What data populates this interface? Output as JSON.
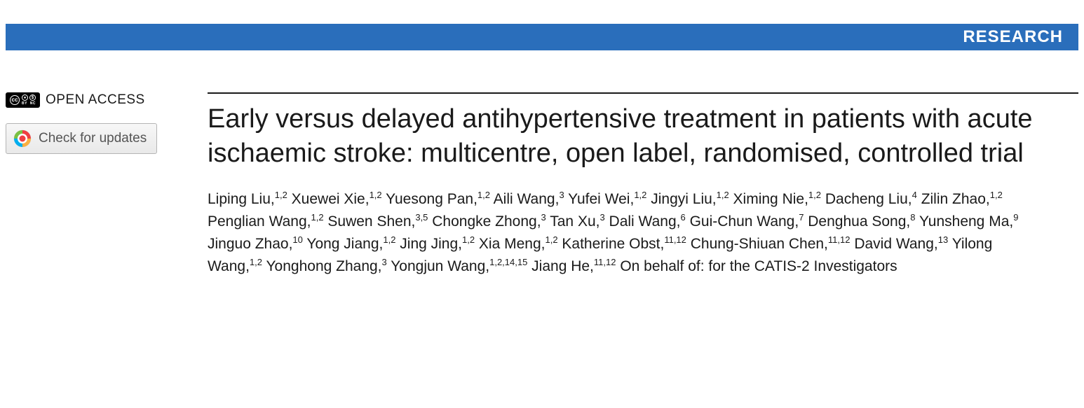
{
  "banner": {
    "label": "RESEARCH",
    "background": "#2a6ebb",
    "text_color": "#ffffff"
  },
  "sidebar": {
    "open_access_label": "OPEN ACCESS",
    "cc_badge": {
      "main": "cc",
      "icons": [
        "BY",
        "NC"
      ]
    },
    "updates_button_label": "Check for updates"
  },
  "article": {
    "title": "Early versus delayed antihypertensive treatment in patients with acute ischaemic stroke: multicentre, open label, randomised, controlled trial",
    "authors": [
      {
        "name": "Liping Liu",
        "aff": "1,2"
      },
      {
        "name": "Xuewei Xie",
        "aff": "1,2"
      },
      {
        "name": "Yuesong Pan",
        "aff": "1,2"
      },
      {
        "name": "Aili Wang",
        "aff": "3"
      },
      {
        "name": "Yufei Wei",
        "aff": "1,2"
      },
      {
        "name": "Jingyi Liu",
        "aff": "1,2"
      },
      {
        "name": "Ximing Nie",
        "aff": "1,2"
      },
      {
        "name": "Dacheng Liu",
        "aff": "4"
      },
      {
        "name": "Zilin Zhao",
        "aff": "1,2"
      },
      {
        "name": "Penglian Wang",
        "aff": "1,2"
      },
      {
        "name": "Suwen Shen",
        "aff": "3,5"
      },
      {
        "name": "Chongke Zhong",
        "aff": "3"
      },
      {
        "name": "Tan Xu",
        "aff": "3"
      },
      {
        "name": "Dali Wang",
        "aff": "6"
      },
      {
        "name": "Gui-Chun Wang",
        "aff": "7"
      },
      {
        "name": "Denghua Song",
        "aff": "8"
      },
      {
        "name": "Yunsheng Ma",
        "aff": "9"
      },
      {
        "name": "Jinguo Zhao",
        "aff": "10"
      },
      {
        "name": "Yong Jiang",
        "aff": "1,2"
      },
      {
        "name": "Jing Jing",
        "aff": "1,2"
      },
      {
        "name": "Xia Meng",
        "aff": "1,2"
      },
      {
        "name": "Katherine Obst",
        "aff": "11,12"
      },
      {
        "name": "Chung-Shiuan Chen",
        "aff": "11,12"
      },
      {
        "name": "David Wang",
        "aff": "13"
      },
      {
        "name": "Yilong Wang",
        "aff": "1,2"
      },
      {
        "name": "Yonghong Zhang",
        "aff": "3"
      },
      {
        "name": "Yongjun Wang",
        "aff": "1,2,14,15"
      },
      {
        "name": "Jiang He",
        "aff": "11,12"
      }
    ],
    "on_behalf": "On behalf of: for the CATIS-2 Investigators"
  },
  "style": {
    "title_fontsize": 38,
    "author_fontsize": 21,
    "rule_color": "#1a1a1a",
    "body_background": "#ffffff"
  }
}
